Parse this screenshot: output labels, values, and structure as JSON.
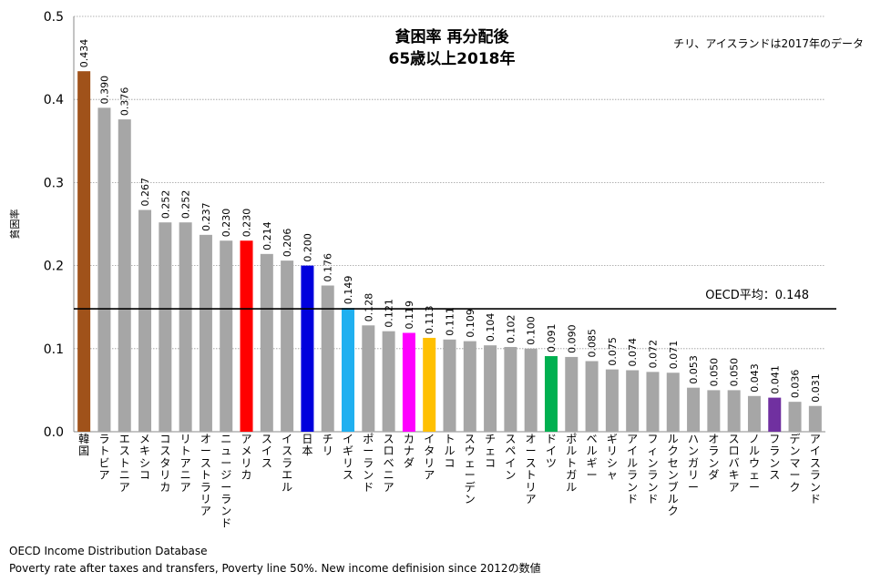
{
  "chart_data": {
    "type": "bar",
    "title_line1": "貧困率 再分配後",
    "title_line2": "65歳以上2018年",
    "note": "チリ、アイスランドは2017年のデータ",
    "ylabel": "貧困率",
    "xlabel": "",
    "ylim": [
      0,
      0.5
    ],
    "yticks": [
      "0.0",
      "0.1",
      "0.2",
      "0.3",
      "0.4",
      "0.5"
    ],
    "grid": true,
    "reference_line": {
      "label": "OECD平均：0.148",
      "value": 0.148
    },
    "categories": [
      "韓国",
      "ラトビア",
      "エストニア",
      "メキシコ",
      "コスタリカ",
      "リトアニア",
      "オーストラリア",
      "ニュージーランド",
      "アメリカ",
      "スイス",
      "イスラエル",
      "日本",
      "チリ",
      "イギリス",
      "ポーランド",
      "スロベニア",
      "カナダ",
      "イタリア",
      "トルコ",
      "スウェーデン",
      "チェコ",
      "スペイン",
      "オーストリア",
      "ドイツ",
      "ポルトガル",
      "ベルギー",
      "ギリシャ",
      "アイルランド",
      "フィンランド",
      "ルクセンブルク",
      "ハンガリー",
      "オランダ",
      "スロバキア",
      "ノルウェー",
      "フランス",
      "デンマーク",
      "アイスランド"
    ],
    "values": [
      0.434,
      0.39,
      0.376,
      0.267,
      0.252,
      0.252,
      0.237,
      0.23,
      0.23,
      0.214,
      0.206,
      0.2,
      0.176,
      0.149,
      0.128,
      0.121,
      0.119,
      0.113,
      0.111,
      0.109,
      0.104,
      0.102,
      0.1,
      0.091,
      0.09,
      0.085,
      0.075,
      0.074,
      0.072,
      0.071,
      0.053,
      0.05,
      0.05,
      0.043,
      0.041,
      0.036,
      0.031
    ],
    "labels": [
      "0.434",
      "0.390",
      "0.376",
      "0.267",
      "0.252",
      "0.252",
      "0.237",
      "0.230",
      "0.230",
      "0.214",
      "0.206",
      "0.200",
      "0.176",
      "0.149",
      "0.128",
      "0.121",
      "0.119",
      "0.113",
      "0.111",
      "0.109",
      "0.104",
      "0.102",
      "0.100",
      "0.091",
      "0.090",
      "0.085",
      "0.075",
      "0.074",
      "0.072",
      "0.071",
      "0.053",
      "0.050",
      "0.050",
      "0.043",
      "0.041",
      "0.036",
      "0.031"
    ],
    "colors": [
      "#a0521a",
      "#a6a6a6",
      "#a6a6a6",
      "#a6a6a6",
      "#a6a6a6",
      "#a6a6a6",
      "#a6a6a6",
      "#a6a6a6",
      "#ff0000",
      "#a6a6a6",
      "#a6a6a6",
      "#0000dd",
      "#a6a6a6",
      "#20b0f0",
      "#a6a6a6",
      "#a6a6a6",
      "#ff00ff",
      "#ffc000",
      "#a6a6a6",
      "#a6a6a6",
      "#a6a6a6",
      "#a6a6a6",
      "#a6a6a6",
      "#00b050",
      "#a6a6a6",
      "#a6a6a6",
      "#a6a6a6",
      "#a6a6a6",
      "#a6a6a6",
      "#a6a6a6",
      "#a6a6a6",
      "#a6a6a6",
      "#a6a6a6",
      "#a6a6a6",
      "#7030a0",
      "#a6a6a6",
      "#a6a6a6"
    ]
  },
  "source": {
    "line1": "OECD Income Distribution Database",
    "line2": "Poverty rate after taxes and transfers, Poverty line 50%. New income definision since 2012の数値"
  }
}
